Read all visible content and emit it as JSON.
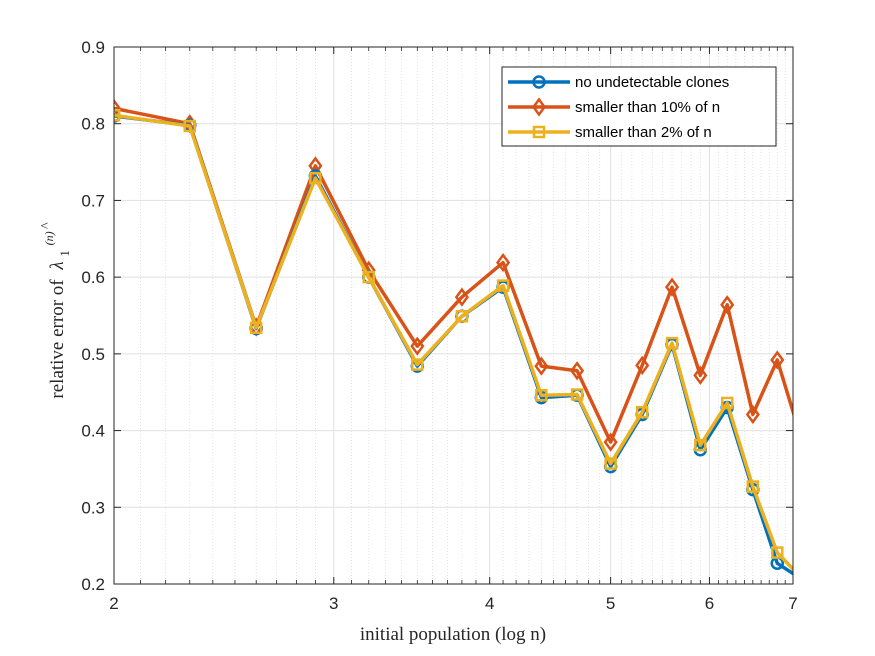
{
  "chart_data": {
    "type": "line",
    "xlabel": "initial population (log n)",
    "ylabel_prefix": "relative error of",
    "ylabel_symbol": "λ",
    "ylabel_sub": "1",
    "ylabel_sup": "(n)",
    "x_scale": "log",
    "xlim": [
      2,
      7
    ],
    "ylim": [
      0.2,
      0.9
    ],
    "xticks": [
      2,
      3,
      4,
      5,
      6,
      7
    ],
    "xtick_labels": [
      "2",
      "3",
      "4",
      "5",
      "6",
      "7"
    ],
    "yticks": [
      0.2,
      0.3,
      0.4,
      0.5,
      0.6,
      0.7,
      0.8,
      0.9
    ],
    "ytick_labels": [
      "0.2",
      "0.3",
      "0.4",
      "0.5",
      "0.6",
      "0.7",
      "0.8",
      "0.9"
    ],
    "grid": true,
    "legend_position": "top-right",
    "x": [
      2.0,
      2.3,
      2.6,
      2.9,
      3.2,
      3.5,
      3.8,
      4.1,
      4.4,
      4.7,
      5.0,
      5.3,
      5.6,
      5.9,
      6.2,
      6.5,
      6.8,
      7.1
    ],
    "series": [
      {
        "name": "no undetectable clones",
        "color": "#0072BD",
        "marker": "circle",
        "values": [
          0.81,
          0.798,
          0.533,
          0.732,
          0.6,
          0.484,
          0.549,
          0.587,
          0.443,
          0.446,
          0.353,
          0.421,
          0.512,
          0.375,
          0.43,
          0.323,
          0.227,
          0.207
        ]
      },
      {
        "name": "smaller than 10% of n",
        "color": "#D95319",
        "marker": "diamond",
        "values": [
          0.82,
          0.8,
          0.535,
          0.745,
          0.609,
          0.51,
          0.574,
          0.619,
          0.484,
          0.478,
          0.385,
          0.485,
          0.587,
          0.472,
          0.564,
          0.421,
          0.492,
          0.392
        ]
      },
      {
        "name": "smaller than 2% of n",
        "color": "#EDB120",
        "marker": "square",
        "values": [
          0.811,
          0.797,
          0.534,
          0.729,
          0.6,
          0.486,
          0.549,
          0.589,
          0.446,
          0.447,
          0.357,
          0.424,
          0.514,
          0.381,
          0.436,
          0.327,
          0.241,
          0.209
        ]
      }
    ]
  }
}
